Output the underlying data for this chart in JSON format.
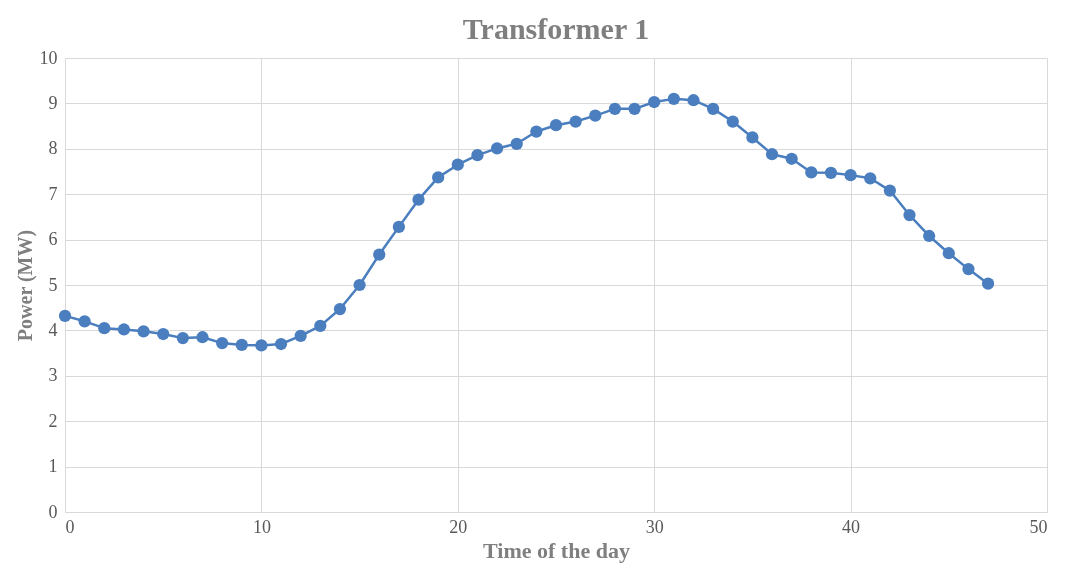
{
  "chart_data": {
    "type": "line",
    "title": "Transformer 1",
    "xlabel": "Time of the day",
    "ylabel": "Power (MW)",
    "x": [
      0,
      1,
      2,
      3,
      4,
      5,
      6,
      7,
      8,
      9,
      10,
      11,
      12,
      13,
      14,
      15,
      16,
      17,
      18,
      19,
      20,
      21,
      22,
      23,
      24,
      25,
      26,
      27,
      28,
      29,
      30,
      31,
      32,
      33,
      34,
      35,
      36,
      37,
      38,
      39,
      40,
      41,
      42,
      43,
      44,
      45,
      46,
      47
    ],
    "series": [
      {
        "color": "#4a7ebf",
        "values": [
          4.32,
          4.2,
          4.05,
          4.02,
          3.98,
          3.92,
          3.83,
          3.85,
          3.72,
          3.68,
          3.67,
          3.7,
          3.88,
          4.1,
          4.47,
          5.0,
          5.67,
          6.28,
          6.88,
          7.37,
          7.65,
          7.86,
          8.01,
          8.11,
          8.38,
          8.52,
          8.6,
          8.73,
          8.88,
          8.88,
          9.03,
          9.1,
          9.07,
          8.88,
          8.6,
          8.25,
          7.88,
          7.78,
          7.48,
          7.47,
          7.42,
          7.35,
          7.08,
          6.54,
          6.08,
          5.7,
          5.35,
          5.03
        ]
      }
    ],
    "xlim": [
      0,
      50
    ],
    "xticks": [
      0,
      10,
      20,
      30,
      40,
      50
    ],
    "ylim": [
      0,
      10
    ],
    "yticks": [
      0,
      1,
      2,
      3,
      4,
      5,
      6,
      7,
      8,
      9,
      10
    ],
    "grid": true,
    "marker": "circle",
    "line_style": "solid"
  }
}
